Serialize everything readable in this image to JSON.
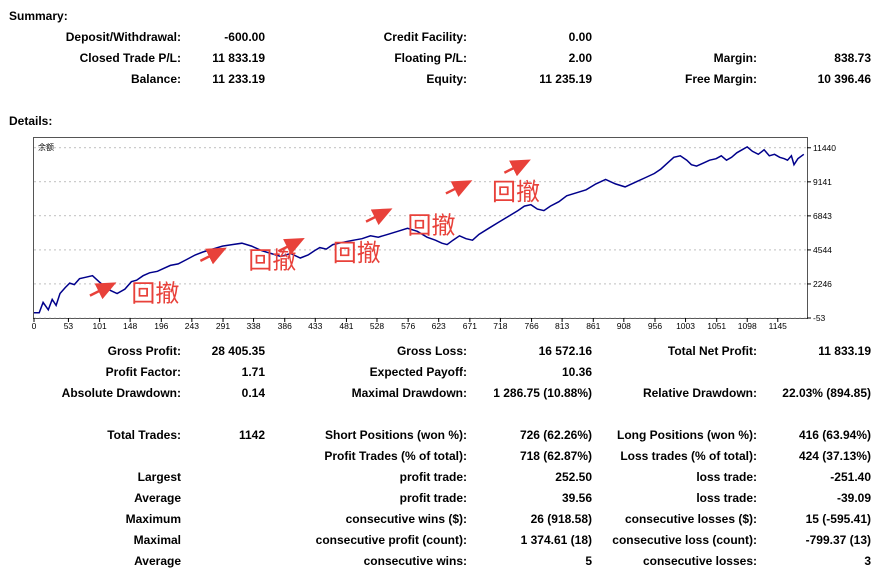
{
  "summary": {
    "heading": "Summary:",
    "rows": [
      [
        {
          "label": "Deposit/Withdrawal:",
          "value": "-600.00"
        },
        {
          "label": "Credit Facility:",
          "value": "0.00"
        },
        {
          "label": "",
          "value": ""
        }
      ],
      [
        {
          "label": "Closed Trade P/L:",
          "value": "11 833.19"
        },
        {
          "label": "Floating P/L:",
          "value": "2.00"
        },
        {
          "label": "Margin:",
          "value": "838.73"
        }
      ],
      [
        {
          "label": "Balance:",
          "value": "11 233.19"
        },
        {
          "label": "Equity:",
          "value": "11 235.19"
        },
        {
          "label": "Free Margin:",
          "value": "10 396.46"
        }
      ]
    ]
  },
  "details": {
    "heading": "Details:",
    "rows": [
      [
        {
          "label": "Gross Profit:",
          "value": "28 405.35"
        },
        {
          "label": "Gross Loss:",
          "value": "16 572.16"
        },
        {
          "label": "Total Net Profit:",
          "value": "11 833.19"
        }
      ],
      [
        {
          "label": "Profit Factor:",
          "value": "1.71"
        },
        {
          "label": "Expected Payoff:",
          "value": "10.36"
        },
        {
          "label": "",
          "value": ""
        }
      ],
      [
        {
          "label": "Absolute Drawdown:",
          "value": "0.14"
        },
        {
          "label": "Maximal Drawdown:",
          "value": "1 286.75 (10.88%)"
        },
        {
          "label": "Relative Drawdown:",
          "value": "22.03% (894.85)"
        }
      ],
      [
        {
          "label": "Total Trades:",
          "value": "1142"
        },
        {
          "label": "Short Positions (won %):",
          "value": "726 (62.26%)"
        },
        {
          "label": "Long Positions (won %):",
          "value": "416 (63.94%)"
        }
      ],
      [
        {
          "label": "",
          "value": ""
        },
        {
          "label": "Profit Trades (% of total):",
          "value": "718 (62.87%)"
        },
        {
          "label": "Loss trades (% of total):",
          "value": "424 (37.13%)"
        }
      ],
      [
        {
          "label": "Largest",
          "value": ""
        },
        {
          "label": "profit trade:",
          "value": "252.50"
        },
        {
          "label": "loss trade:",
          "value": "-251.40"
        }
      ],
      [
        {
          "label": "Average",
          "value": ""
        },
        {
          "label": "profit trade:",
          "value": "39.56"
        },
        {
          "label": "loss trade:",
          "value": "-39.09"
        }
      ],
      [
        {
          "label": "Maximum",
          "value": ""
        },
        {
          "label": "consecutive wins ($):",
          "value": "26 (918.58)"
        },
        {
          "label": "consecutive losses ($):",
          "value": "15 (-595.41)"
        }
      ],
      [
        {
          "label": "Maximal",
          "value": ""
        },
        {
          "label": "consecutive profit (count):",
          "value": "1 374.61 (18)"
        },
        {
          "label": "consecutive loss (count):",
          "value": "-799.37 (13)"
        }
      ],
      [
        {
          "label": "Average",
          "value": ""
        },
        {
          "label": "consecutive wins:",
          "value": "5"
        },
        {
          "label": "consecutive losses:",
          "value": "3"
        }
      ]
    ]
  },
  "chart_data": {
    "type": "line",
    "title": "余额",
    "x_ticks": [
      "0",
      "53",
      "101",
      "148",
      "196",
      "243",
      "291",
      "338",
      "386",
      "433",
      "481",
      "528",
      "576",
      "623",
      "671",
      "718",
      "766",
      "813",
      "861",
      "908",
      "956",
      "1003",
      "1051",
      "1098",
      "1145"
    ],
    "y_ticks": [
      "11440",
      "9141",
      "6843",
      "4544",
      "2246",
      "-53"
    ],
    "xlim": [
      0,
      1190
    ],
    "ylim": [
      -53,
      12100
    ],
    "line_color": "#00008b",
    "series": [
      {
        "x": [
          0,
          8,
          14,
          22,
          28,
          34,
          40,
          48,
          55,
          62,
          70,
          80,
          90,
          100,
          108,
          118,
          128,
          140,
          150,
          158,
          168,
          178,
          190,
          200,
          210,
          222,
          235,
          248,
          260,
          275,
          290,
          305,
          320,
          335,
          350,
          365,
          380,
          395,
          410,
          422,
          432,
          440,
          450,
          460,
          470,
          480,
          492,
          505,
          518,
          530,
          545,
          560,
          575,
          590,
          605,
          618,
          628,
          636,
          645,
          655,
          665,
          675,
          685,
          700,
          715,
          730,
          745,
          755,
          765,
          775,
          785,
          795,
          808,
          820,
          835,
          850,
          865,
          880,
          895,
          910,
          925,
          940,
          955,
          965,
          975,
          985,
          995,
          1005,
          1012,
          1020,
          1030,
          1040,
          1050,
          1058,
          1066,
          1074,
          1082,
          1090,
          1098,
          1106,
          1115,
          1124,
          1132,
          1140,
          1148,
          1155,
          1160,
          1166,
          1170,
          1176,
          1185
        ],
        "y": [
          300,
          300,
          1000,
          500,
          1200,
          800,
          1600,
          2000,
          2300,
          2200,
          2600,
          2700,
          2800,
          2400,
          2100,
          1800,
          1600,
          1900,
          2400,
          2500,
          2800,
          3000,
          3100,
          3300,
          3500,
          3600,
          3900,
          4200,
          4400,
          4600,
          4800,
          4900,
          5000,
          4800,
          4500,
          4300,
          4100,
          4300,
          4000,
          4200,
          4500,
          4700,
          4600,
          4900,
          5000,
          5100,
          5200,
          5300,
          5500,
          5400,
          5600,
          5800,
          6000,
          5800,
          5400,
          5200,
          5000,
          4900,
          5200,
          5500,
          5300,
          5200,
          5600,
          6000,
          6400,
          6800,
          7200,
          7500,
          7600,
          7300,
          7200,
          7500,
          7800,
          8200,
          8400,
          8600,
          9000,
          9300,
          9000,
          8800,
          9100,
          9400,
          9700,
          10000,
          10400,
          10800,
          10900,
          10600,
          10300,
          10200,
          10400,
          10600,
          10700,
          10900,
          10600,
          10800,
          11100,
          11300,
          11500,
          11200,
          11000,
          11300,
          10900,
          11000,
          10800,
          10700,
          10600,
          10900,
          10300,
          10700,
          11000
        ]
      }
    ],
    "annotations": [
      {
        "text": "回撤",
        "x": 150,
        "y": 1050,
        "arrow_x": 120,
        "arrow_y": 2200
      },
      {
        "text": "回撤",
        "x": 330,
        "y": 3300,
        "arrow_x": 290,
        "arrow_y": 4550
      },
      {
        "text": "回撤",
        "x": 460,
        "y": 3800,
        "arrow_x": 410,
        "arrow_y": 5200
      },
      {
        "text": "回撤",
        "x": 575,
        "y": 5650,
        "arrow_x": 545,
        "arrow_y": 7200
      },
      {
        "text": "回撤",
        "x": 705,
        "y": 7900,
        "arrow_x": 668,
        "arrow_y": 9100
      },
      {
        "text": "",
        "x": 0,
        "y": 0,
        "arrow_x": 758,
        "arrow_y": 10500
      }
    ],
    "annotation_color": "#e8413a"
  }
}
